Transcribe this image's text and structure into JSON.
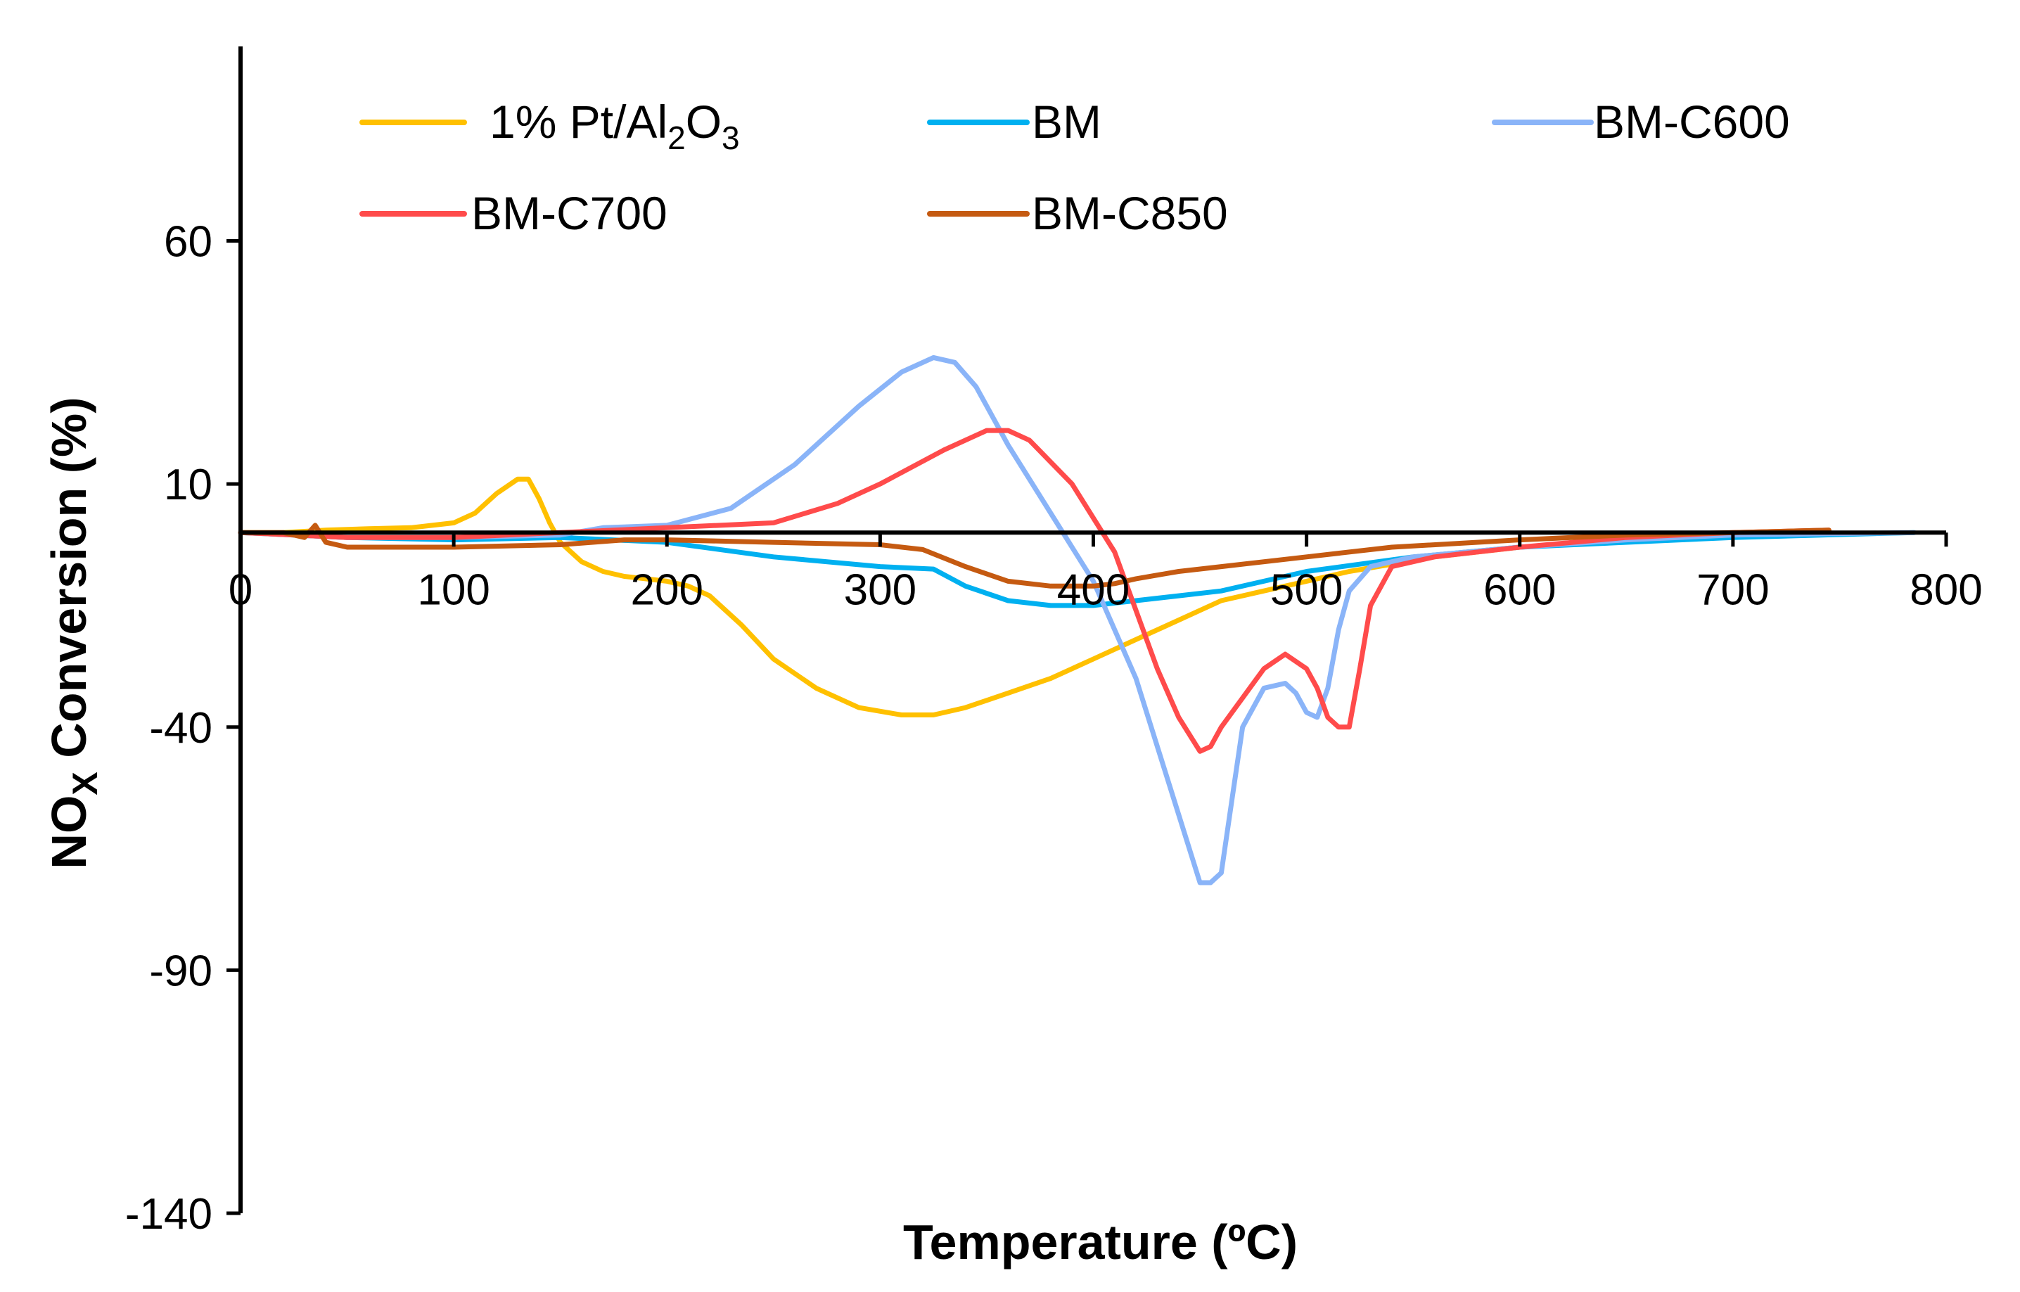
{
  "chart_data": {
    "type": "line",
    "title": "",
    "xlabel": "Temperature (ºC)",
    "ylabel": {
      "main": "NO",
      "sub": "X",
      "rest": " Conversion (%)"
    },
    "xlim": [
      0,
      800
    ],
    "ylim": [
      -140,
      100
    ],
    "xticks": [
      0,
      100,
      200,
      300,
      400,
      500,
      600,
      700,
      800
    ],
    "yticks": [
      60,
      10,
      -40,
      -90,
      -140
    ],
    "zero_line": 0,
    "legend_position": "top",
    "series": [
      {
        "name": "1% Pt/Al2O3",
        "label_parts": [
          "1% Pt/Al",
          "2",
          "O",
          "3"
        ],
        "color": "#ffc000",
        "x": [
          0,
          20,
          40,
          60,
          80,
          100,
          110,
          120,
          130,
          135,
          140,
          145,
          150,
          160,
          170,
          180,
          200,
          210,
          220,
          235,
          250,
          270,
          290,
          310,
          325,
          340,
          360,
          380,
          400,
          420,
          440,
          460,
          480,
          500,
          520,
          560,
          600,
          650,
          700,
          745
        ],
        "y": [
          0,
          0,
          0.5,
          0.8,
          1,
          2,
          4,
          8,
          11,
          11,
          7,
          2,
          -2,
          -6,
          -8,
          -9,
          -10,
          -11,
          -13,
          -19,
          -26,
          -32,
          -36,
          -37.5,
          -37.5,
          -36,
          -33,
          -30,
          -26,
          -22,
          -18,
          -14,
          -12,
          -10,
          -8,
          -5,
          -3,
          -1.5,
          -0.5,
          0
        ]
      },
      {
        "name": "BM",
        "color": "#00b0f0",
        "x": [
          0,
          50,
          100,
          150,
          200,
          250,
          300,
          325,
          340,
          360,
          380,
          400,
          420,
          440,
          460,
          500,
          550,
          600,
          700,
          785
        ],
        "y": [
          0,
          -1,
          -1.5,
          -1,
          -2,
          -5,
          -7,
          -7.5,
          -11,
          -14,
          -15,
          -15,
          -14,
          -13,
          -12,
          -8,
          -5,
          -3,
          -1,
          0
        ]
      },
      {
        "name": "BM-C600",
        "color": "#8ab4f8",
        "x": [
          0,
          50,
          100,
          150,
          170,
          200,
          230,
          260,
          290,
          310,
          325,
          335,
          345,
          360,
          380,
          400,
          420,
          440,
          450,
          455,
          460,
          465,
          470,
          480,
          490,
          495,
          500,
          505,
          510,
          515,
          520,
          530,
          550,
          600,
          650,
          700,
          785
        ],
        "y": [
          0,
          -1,
          -1,
          -0.5,
          1,
          1.5,
          5,
          14,
          26,
          33,
          36,
          35,
          30,
          18,
          4,
          -10,
          -30,
          -58,
          -72,
          -72,
          -70,
          -55,
          -40,
          -32,
          -31,
          -33,
          -37,
          -38,
          -32,
          -20,
          -12,
          -7,
          -5,
          -3,
          -1.5,
          -0.5,
          0
        ]
      },
      {
        "name": "BM-C700",
        "color": "#ff4b4b",
        "x": [
          0,
          50,
          100,
          150,
          200,
          250,
          280,
          300,
          330,
          350,
          360,
          370,
          390,
          410,
          430,
          440,
          450,
          455,
          460,
          470,
          480,
          490,
          500,
          505,
          510,
          515,
          520,
          525,
          530,
          540,
          560,
          600,
          650,
          700,
          745
        ],
        "y": [
          0,
          -1,
          -1,
          0,
          1,
          2,
          6,
          10,
          17,
          21,
          21,
          19,
          10,
          -4,
          -28,
          -38,
          -45,
          -44,
          -40,
          -34,
          -28,
          -25,
          -28,
          -32,
          -38,
          -40,
          -40,
          -28,
          -15,
          -7,
          -5,
          -3,
          -1,
          0,
          0.5
        ]
      },
      {
        "name": "BM-C850",
        "color": "#c55a11",
        "x": [
          0,
          20,
          30,
          35,
          40,
          50,
          80,
          100,
          150,
          180,
          200,
          250,
          300,
          320,
          340,
          360,
          380,
          400,
          410,
          420,
          440,
          460,
          500,
          540,
          600,
          650,
          700,
          745
        ],
        "y": [
          0,
          0,
          -1,
          1.5,
          -2,
          -3,
          -3,
          -3,
          -2.5,
          -1.5,
          -1.5,
          -2,
          -2.5,
          -3.5,
          -7,
          -10,
          -11,
          -11,
          -10.5,
          -9.5,
          -8,
          -7,
          -5,
          -3,
          -1.5,
          -0.5,
          0,
          0.5
        ]
      }
    ]
  }
}
